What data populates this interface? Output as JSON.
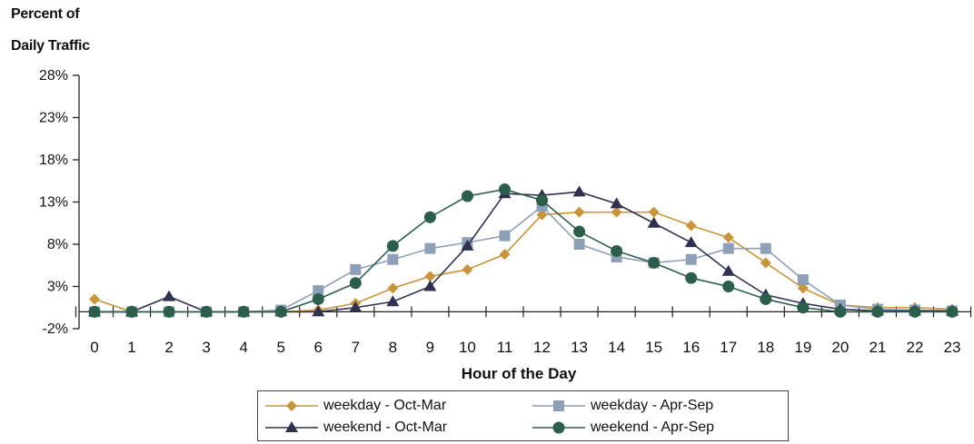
{
  "chart_data": {
    "type": "line",
    "ylabel_lines": [
      "Percent of",
      "Daily Traffic"
    ],
    "xlabel": "Hour of the Day",
    "ylim": [
      -2,
      28
    ],
    "yticks": [
      28,
      23,
      18,
      13,
      8,
      3,
      -2
    ],
    "ytick_labels": [
      "28%",
      "23%",
      "18%",
      "13%",
      "8%",
      "3%",
      "-2%"
    ],
    "x": [
      0,
      1,
      2,
      3,
      4,
      5,
      6,
      7,
      8,
      9,
      10,
      11,
      12,
      13,
      14,
      15,
      16,
      17,
      18,
      19,
      20,
      21,
      22,
      23
    ],
    "grid": false,
    "legend_position": "bottom",
    "series": [
      {
        "name": "weekday - Oct-Mar",
        "color": "#c8953c",
        "marker": "diamond",
        "values": [
          1.5,
          0,
          0,
          0,
          0,
          0,
          0.2,
          1.0,
          2.8,
          4.2,
          5.0,
          6.8,
          11.5,
          11.8,
          11.8,
          11.8,
          10.2,
          8.8,
          5.8,
          2.8,
          0.8,
          0.5,
          0.5,
          0.3
        ]
      },
      {
        "name": "weekday - Apr-Sep",
        "color": "#8e9fb8",
        "marker": "square",
        "values": [
          0,
          0,
          0,
          0,
          0,
          0.2,
          2.5,
          5.0,
          6.2,
          7.5,
          8.2,
          9.0,
          12.5,
          8.0,
          6.5,
          5.8,
          6.2,
          7.5,
          7.5,
          3.8,
          0.8,
          0.3,
          0.2,
          0.1
        ]
      },
      {
        "name": "weekend - Oct-Mar",
        "color": "#2e3150",
        "marker": "triangle",
        "values": [
          0,
          0,
          1.8,
          0,
          0,
          0,
          0,
          0.5,
          1.2,
          3.0,
          7.8,
          14.0,
          13.8,
          14.2,
          12.8,
          10.5,
          8.2,
          4.8,
          2.0,
          1.0,
          0.3,
          0.1,
          0.1,
          0.1
        ]
      },
      {
        "name": "weekend - Apr-Sep",
        "color": "#2c5e4c",
        "marker": "circle",
        "values": [
          0,
          0,
          0,
          0,
          0,
          0,
          1.5,
          3.4,
          7.8,
          11.2,
          13.7,
          14.5,
          13.2,
          9.5,
          7.2,
          5.8,
          4.0,
          3.0,
          1.5,
          0.5,
          0,
          0,
          0,
          0
        ]
      }
    ]
  }
}
